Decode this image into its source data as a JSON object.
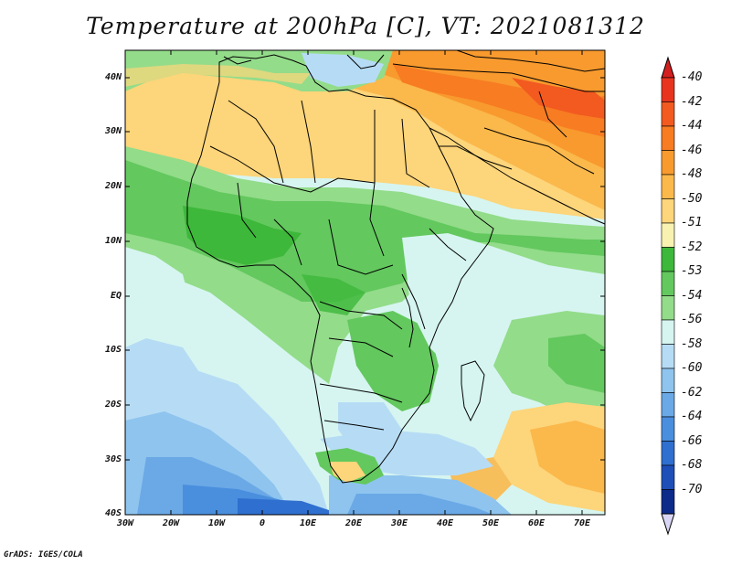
{
  "title": "Temperature at 200hPa [C], VT: 2021081312",
  "credit": "GrADS: IGES/COLA",
  "axes": {
    "lat_labels": [
      "40N",
      "30N",
      "20N",
      "10N",
      "EQ",
      "10S",
      "20S",
      "30S",
      "40S"
    ],
    "lon_labels": [
      "30W",
      "20W",
      "10W",
      "0",
      "10E",
      "20E",
      "30E",
      "40E",
      "50E",
      "60E",
      "70E"
    ]
  },
  "colorbar": {
    "labels": [
      "-40",
      "-42",
      "-44",
      "-46",
      "-48",
      "-50",
      "-51",
      "-52",
      "-53",
      "-54",
      "-56",
      "-58",
      "-60",
      "-62",
      "-64",
      "-66",
      "-68",
      "-70"
    ],
    "colors": [
      "#e8341e",
      "#f25a20",
      "#f77c22",
      "#f89a2e",
      "#fbb84b",
      "#fdd57a",
      "#f7f2b0",
      "#3db83a",
      "#63c85e",
      "#93dc8a",
      "#d6f5f0",
      "#b6dcf5",
      "#8ec4ee",
      "#6aa9e6",
      "#4a8ede",
      "#2f6fcf",
      "#1e4fb8",
      "#0c2a8a"
    ],
    "top_color": "#d31f1f",
    "bottom_color": "#d8d6f4"
  },
  "chart_data": {
    "type": "heatmap",
    "variable": "Temperature at 200hPa",
    "units": "C",
    "valid_time": "2021081312",
    "lon_range": [
      -30,
      75
    ],
    "lat_range": [
      -40,
      45
    ]
  }
}
